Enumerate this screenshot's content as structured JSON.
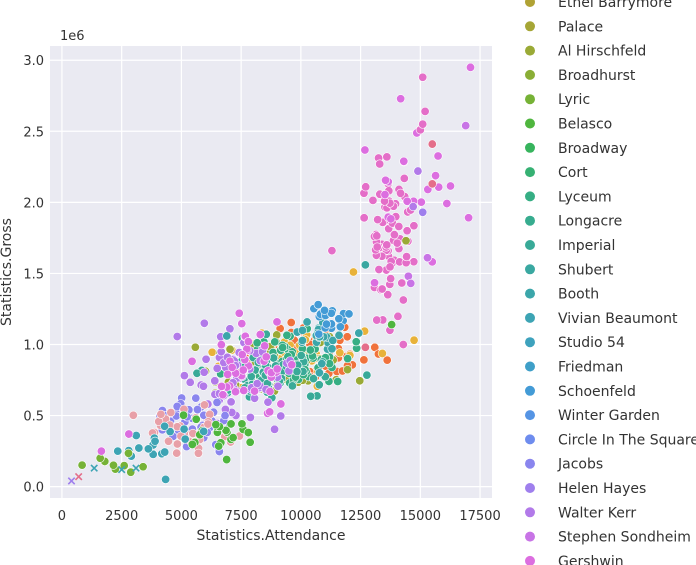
{
  "chart_data": {
    "type": "scatter",
    "xlabel": "Statistics.Attendance",
    "ylabel": "Statistics.Gross",
    "offset_label": "1e6",
    "xlim": [
      -500,
      18000
    ],
    "ylim": [
      -0.08,
      3.1
    ],
    "x_ticks": [
      0,
      2500,
      5000,
      7500,
      10000,
      12500,
      15000,
      17500
    ],
    "x_tick_labels": [
      "0",
      "2500",
      "5000",
      "7500",
      "10000",
      "12500",
      "15000",
      "17500"
    ],
    "y_ticks": [
      0.0,
      0.5,
      1.0,
      1.5,
      2.0,
      2.5,
      3.0
    ],
    "y_tick_labels": [
      "0.0",
      "0.5",
      "1.0",
      "1.5",
      "2.0",
      "2.5",
      "3.0"
    ],
    "y_scale_multiplier": 1000000,
    "grid": true,
    "legend_position": "right, outside plot",
    "legend": [
      {
        "name": "Ethel Barrymore",
        "color": "#b0a234"
      },
      {
        "name": "Palace",
        "color": "#a6a636"
      },
      {
        "name": "Al Hirschfeld",
        "color": "#9aaa36"
      },
      {
        "name": "Broadhurst",
        "color": "#8aae36"
      },
      {
        "name": "Lyric",
        "color": "#76b236"
      },
      {
        "name": "Belasco",
        "color": "#4fb63e"
      },
      {
        "name": "Broadway",
        "color": "#37b45d"
      },
      {
        "name": "Cort",
        "color": "#36b173"
      },
      {
        "name": "Lyceum",
        "color": "#36ae84"
      },
      {
        "name": "Longacre",
        "color": "#37ac8f"
      },
      {
        "name": "Imperial",
        "color": "#39aa98"
      },
      {
        "name": "Shubert",
        "color": "#3aa8a1"
      },
      {
        "name": "Booth",
        "color": "#3ba6aa"
      },
      {
        "name": "Vivian Beaumont",
        "color": "#3da4b4"
      },
      {
        "name": "Studio 54",
        "color": "#3ea2bd"
      },
      {
        "name": "Friedman",
        "color": "#3f9fc8"
      },
      {
        "name": "Schoenfeld",
        "color": "#439bd6"
      },
      {
        "name": "Winter Garden",
        "color": "#5594e4"
      },
      {
        "name": "Circle In The Square",
        "color": "#6e8cee"
      },
      {
        "name": "Jacobs",
        "color": "#8a85ee"
      },
      {
        "name": "Helen Hayes",
        "color": "#9f7fed"
      },
      {
        "name": "Walter Kerr",
        "color": "#b27ae9"
      },
      {
        "name": "Stephen Sondheim",
        "color": "#c874e6"
      },
      {
        "name": "Gershwin",
        "color": "#dc6ee0"
      }
    ],
    "clusters": [
      {
        "color": "#e46ec8",
        "cx": 13600,
        "cy": 1.75,
        "sx": 600,
        "sy": 0.28,
        "n": 75
      },
      {
        "color": "#dc6ee0",
        "cx": 14800,
        "cy": 2.05,
        "sx": 900,
        "sy": 0.35,
        "n": 22
      },
      {
        "color": "#f0723c",
        "cx": 10500,
        "cy": 0.95,
        "sx": 1400,
        "sy": 0.12,
        "n": 70
      },
      {
        "color": "#e8b23a",
        "cx": 9500,
        "cy": 0.9,
        "sx": 1500,
        "sy": 0.12,
        "n": 45
      },
      {
        "color": "#9aaa36",
        "cx": 9000,
        "cy": 0.85,
        "sx": 1500,
        "sy": 0.12,
        "n": 50
      },
      {
        "color": "#36ae84",
        "cx": 9800,
        "cy": 0.88,
        "sx": 1200,
        "sy": 0.1,
        "n": 70
      },
      {
        "color": "#39aa98",
        "cx": 8800,
        "cy": 0.78,
        "sx": 1300,
        "sy": 0.1,
        "n": 60
      },
      {
        "color": "#3ba6aa",
        "cx": 10800,
        "cy": 1.05,
        "sx": 700,
        "sy": 0.1,
        "n": 25
      },
      {
        "color": "#439bd6",
        "cx": 11300,
        "cy": 1.18,
        "sx": 500,
        "sy": 0.08,
        "n": 18
      },
      {
        "color": "#b27ae9",
        "cx": 7400,
        "cy": 0.75,
        "sx": 1100,
        "sy": 0.17,
        "n": 70
      },
      {
        "color": "#dc6ee0",
        "cx": 7700,
        "cy": 0.85,
        "sx": 900,
        "sy": 0.15,
        "n": 40
      },
      {
        "color": "#8a85ee",
        "cx": 5400,
        "cy": 0.45,
        "sx": 900,
        "sy": 0.1,
        "n": 40
      },
      {
        "color": "#e8a0a8",
        "cx": 5200,
        "cy": 0.4,
        "sx": 1000,
        "sy": 0.09,
        "n": 35
      },
      {
        "color": "#4fb63e",
        "cx": 6500,
        "cy": 0.38,
        "sx": 1000,
        "sy": 0.07,
        "n": 22
      },
      {
        "color": "#3da4b4",
        "cx": 3600,
        "cy": 0.28,
        "sx": 800,
        "sy": 0.07,
        "n": 18
      },
      {
        "color": "#76b236",
        "cx": 2200,
        "cy": 0.16,
        "sx": 500,
        "sy": 0.05,
        "n": 8
      }
    ],
    "points": [
      {
        "x": 400,
        "y": 0.04,
        "color": "#9f7fed",
        "marker": "x"
      },
      {
        "x": 700,
        "y": 0.07,
        "color": "#e46e8a",
        "marker": "x"
      },
      {
        "x": 1350,
        "y": 0.13,
        "color": "#3da4b4",
        "marker": "x"
      },
      {
        "x": 1600,
        "y": 0.2,
        "color": "#76b236",
        "marker": "o"
      },
      {
        "x": 1650,
        "y": 0.25,
        "color": "#dc6ee0",
        "marker": "o"
      },
      {
        "x": 2500,
        "y": 0.12,
        "color": "#3da4b4",
        "marker": "x"
      },
      {
        "x": 3100,
        "y": 0.13,
        "color": "#3da4b4",
        "marker": "x"
      },
      {
        "x": 2800,
        "y": 0.37,
        "color": "#dc6ee0",
        "marker": "o"
      },
      {
        "x": 6900,
        "y": 1.06,
        "color": "#3ba6aa",
        "marker": "o"
      },
      {
        "x": 8300,
        "y": 1.07,
        "color": "#dc6ee0",
        "marker": "o"
      },
      {
        "x": 11300,
        "y": 1.66,
        "color": "#e46ec8",
        "marker": "o"
      },
      {
        "x": 12200,
        "y": 1.51,
        "color": "#e8b23a",
        "marker": "o"
      },
      {
        "x": 12700,
        "y": 1.56,
        "color": "#3aa8a1",
        "marker": "o"
      },
      {
        "x": 12700,
        "y": 0.98,
        "color": "#e46e8a",
        "marker": "o"
      },
      {
        "x": 13800,
        "y": 1.14,
        "color": "#4fb63e",
        "marker": "o"
      },
      {
        "x": 13300,
        "y": 2.27,
        "color": "#e46ec8",
        "marker": "o"
      },
      {
        "x": 13600,
        "y": 2.32,
        "color": "#e46ec8",
        "marker": "o"
      },
      {
        "x": 14100,
        "y": 1.83,
        "color": "#e46ec8",
        "marker": "o"
      },
      {
        "x": 14400,
        "y": 1.73,
        "color": "#9aaa36",
        "marker": "o"
      },
      {
        "x": 14500,
        "y": 1.48,
        "color": "#c874e6",
        "marker": "o"
      },
      {
        "x": 14600,
        "y": 1.43,
        "color": "#c874e6",
        "marker": "o"
      },
      {
        "x": 14700,
        "y": 1.97,
        "color": "#b27ae9",
        "marker": "o"
      },
      {
        "x": 14900,
        "y": 2.22,
        "color": "#b27ae9",
        "marker": "o"
      },
      {
        "x": 15000,
        "y": 2.51,
        "color": "#e46ec8",
        "marker": "o"
      },
      {
        "x": 15100,
        "y": 2.55,
        "color": "#e46ec8",
        "marker": "o"
      },
      {
        "x": 15200,
        "y": 2.64,
        "color": "#e46ec8",
        "marker": "o"
      },
      {
        "x": 15100,
        "y": 2.88,
        "color": "#e46ec8",
        "marker": "o"
      },
      {
        "x": 15100,
        "y": 1.93,
        "color": "#9f7fed",
        "marker": "o"
      },
      {
        "x": 15300,
        "y": 1.61,
        "color": "#c874e6",
        "marker": "o"
      },
      {
        "x": 15500,
        "y": 2.41,
        "color": "#e46e8a",
        "marker": "o"
      },
      {
        "x": 15500,
        "y": 2.13,
        "color": "#e46e8a",
        "marker": "o"
      },
      {
        "x": 16900,
        "y": 2.54,
        "color": "#c874e6",
        "marker": "o"
      },
      {
        "x": 17100,
        "y": 2.95,
        "color": "#dc6ee0",
        "marker": "o"
      }
    ]
  }
}
